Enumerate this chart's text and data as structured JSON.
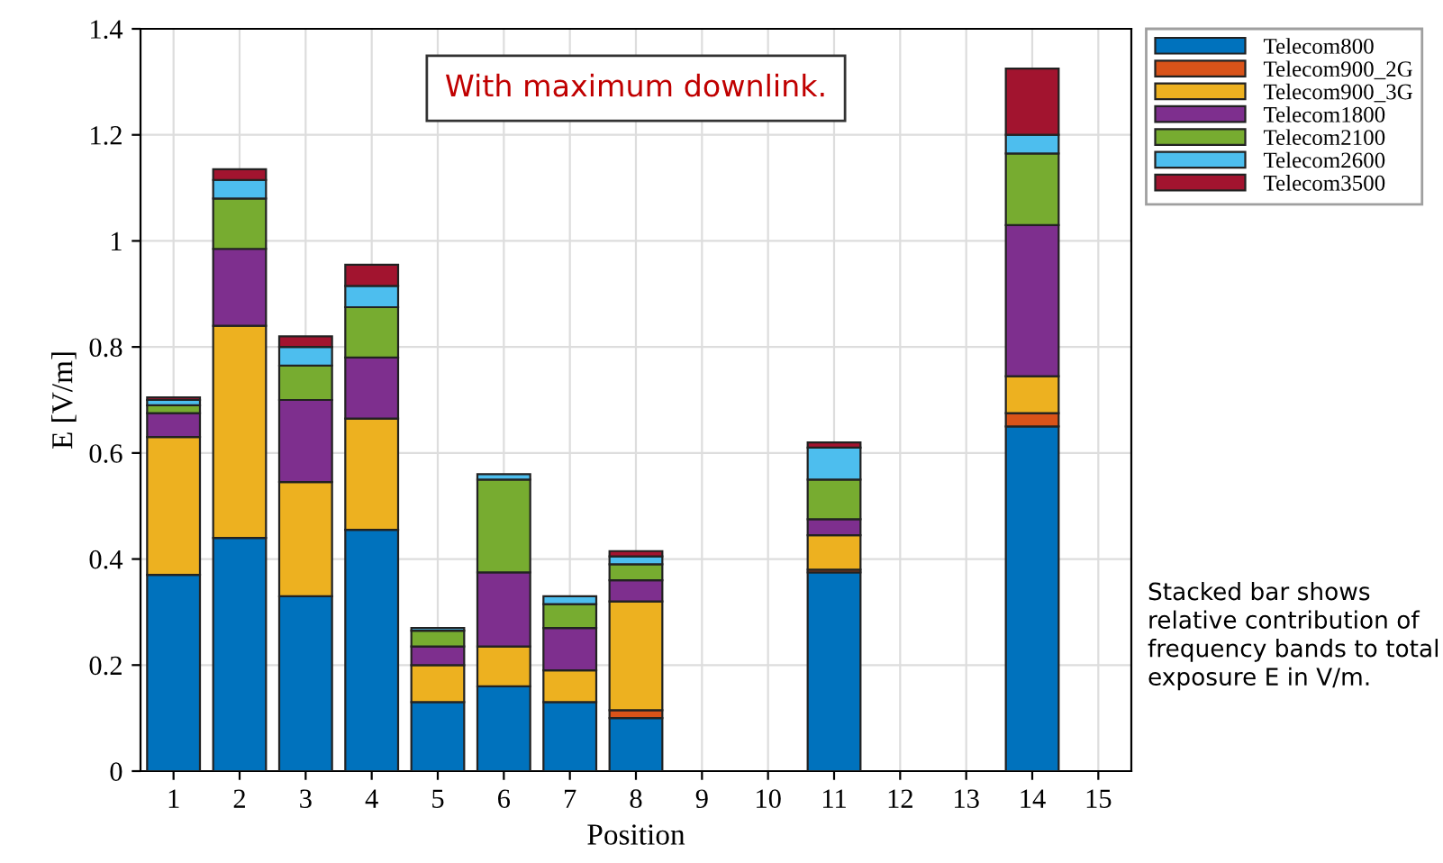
{
  "chart_data": {
    "type": "bar",
    "stacked": true,
    "xlabel": "Position",
    "ylabel": "E [V/m]",
    "categories": [
      "1",
      "2",
      "3",
      "4",
      "5",
      "6",
      "7",
      "8",
      "9",
      "10",
      "11",
      "12",
      "13",
      "14",
      "15"
    ],
    "series": [
      {
        "name": "Telecom800",
        "color": "#0072bd",
        "values": [
          0.37,
          0.44,
          0.33,
          0.455,
          0.13,
          0.16,
          0.13,
          0.1,
          null,
          null,
          0.375,
          null,
          null,
          0.65,
          null
        ]
      },
      {
        "name": "Telecom900_2G",
        "color": "#d95319",
        "values": [
          null,
          null,
          null,
          null,
          null,
          null,
          null,
          0.015,
          null,
          null,
          0.005,
          null,
          null,
          0.025,
          null
        ]
      },
      {
        "name": "Telecom900_3G",
        "color": "#edb120",
        "values": [
          0.26,
          0.4,
          0.215,
          0.21,
          0.07,
          0.075,
          0.06,
          0.205,
          null,
          null,
          0.065,
          null,
          null,
          0.07,
          null
        ]
      },
      {
        "name": "Telecom1800",
        "color": "#7e2f8e",
        "values": [
          0.045,
          0.145,
          0.155,
          0.115,
          0.035,
          0.14,
          0.08,
          0.04,
          null,
          null,
          0.03,
          null,
          null,
          0.285,
          null
        ]
      },
      {
        "name": "Telecom2100",
        "color": "#77ac30",
        "values": [
          0.015,
          0.095,
          0.065,
          0.095,
          0.03,
          0.175,
          0.045,
          0.03,
          null,
          null,
          0.075,
          null,
          null,
          0.135,
          null
        ]
      },
      {
        "name": "Telecom2600",
        "color": "#4dbeee",
        "values": [
          0.01,
          0.035,
          0.035,
          0.04,
          0.005,
          0.01,
          0.015,
          0.015,
          null,
          null,
          0.06,
          null,
          null,
          0.035,
          null
        ]
      },
      {
        "name": "Telecom3500",
        "color": "#a2142f",
        "values": [
          0.005,
          0.02,
          0.02,
          0.04,
          null,
          null,
          null,
          0.01,
          null,
          null,
          0.01,
          null,
          null,
          0.125,
          null
        ]
      }
    ],
    "ylim": [
      0,
      1.4
    ],
    "yticks": [
      0,
      0.2,
      0.4,
      0.6,
      0.8,
      1,
      1.2,
      1.4
    ],
    "grid": true,
    "legend": "top right",
    "annotations": [
      "With maximum downlink.",
      "Stacked bar shows relative contribution of frequency bands to total exposure E in V/m."
    ]
  }
}
